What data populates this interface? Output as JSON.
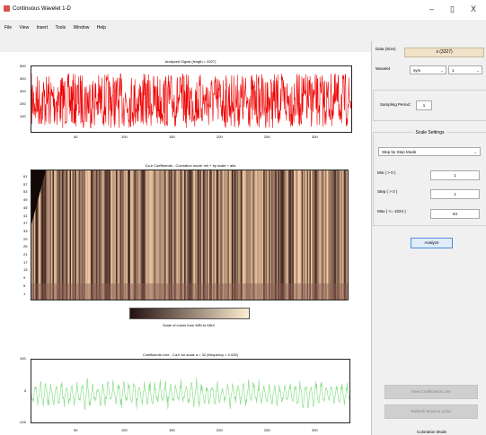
{
  "window": {
    "title": "Continuous Wavelet 1-D",
    "minimize": "–",
    "maximize": "▯",
    "close": "X"
  },
  "menu": [
    "File",
    "View",
    "Insert",
    "Tools",
    "Window",
    "Help"
  ],
  "plots": {
    "signal": {
      "title": "Analyzed Signal (length = 3327)",
      "yticks": [
        "500",
        "400",
        "300",
        "200",
        "100"
      ],
      "xticks": [
        "50",
        "100",
        "150",
        "200",
        "250",
        "300"
      ],
      "color": "#ee0000"
    },
    "coefs": {
      "title": "Ca,b Coefficients - Coloration mode: init + by scale + abs",
      "yticks": [
        "61",
        "57",
        "53",
        "49",
        "45",
        "41",
        "37",
        "33",
        "29",
        "25",
        "21",
        "17",
        "13",
        "9",
        "5",
        "1"
      ]
    },
    "colorbar": {
      "label": "Scale of colors from MIN to MAX"
    },
    "line": {
      "title": "Coefficients Line - Ca,b for scale a = 32 (frequency = 0.025)",
      "yticks": [
        "100",
        "0",
        "-100"
      ],
      "xticks": [
        "50",
        "100",
        "150",
        "200",
        "250",
        "300"
      ],
      "color": "#7ddc7d"
    }
  },
  "panel": {
    "data_label": "Data (Size)",
    "data_value": "x (3327)",
    "wavelet_label": "Wavelet",
    "wavelet_family": "sym",
    "wavelet_order": "1",
    "sampling_label": "Sampling Period :",
    "sampling_value": "1",
    "scale_settings_title": "Scale Settings",
    "scale_mode": "Step by Step Mode",
    "min_label": "Min ( > 0 )",
    "min_value": "1",
    "step_label": "Step ( > 0 )",
    "step_value": "1",
    "max_label": "Max ( <= 1024 )",
    "max_value": "64",
    "analyze_label": "Analyze",
    "new_coefs_label": "New Coefficients Line",
    "refresh_label": "Refresh Maxima Lines",
    "bottom_label": "Coloration Mode"
  }
}
